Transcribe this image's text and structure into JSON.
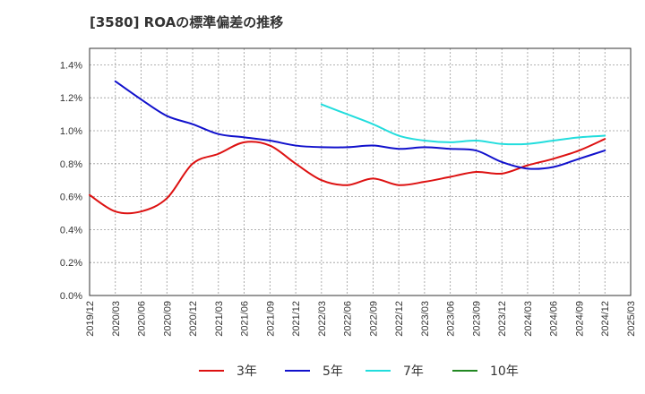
{
  "chart_data": {
    "type": "line",
    "title": "[3580]  ROAの標準偏差の推移",
    "xlabel": "",
    "ylabel": "",
    "x": [
      "2019/12",
      "2020/03",
      "2020/06",
      "2020/09",
      "2020/12",
      "2021/03",
      "2021/06",
      "2021/09",
      "2021/12",
      "2022/03",
      "2022/06",
      "2022/09",
      "2022/12",
      "2023/03",
      "2023/06",
      "2023/09",
      "2023/12",
      "2024/03",
      "2024/06",
      "2024/09",
      "2024/12",
      "2025/03"
    ],
    "y_ticks": [
      "0.0%",
      "0.2%",
      "0.4%",
      "0.6%",
      "0.8%",
      "1.0%",
      "1.2%",
      "1.4%"
    ],
    "ylim": [
      0,
      1.5
    ],
    "grid": true,
    "legend_position": "bottom",
    "series": [
      {
        "name": "3年",
        "color": "#dd1111",
        "values": [
          0.61,
          0.51,
          0.51,
          0.59,
          0.8,
          0.86,
          0.93,
          0.91,
          0.8,
          0.7,
          0.67,
          0.71,
          0.67,
          0.69,
          0.72,
          0.75,
          0.74,
          0.79,
          0.83,
          0.88,
          0.95,
          null
        ]
      },
      {
        "name": "5年",
        "color": "#1111cc",
        "values": [
          null,
          1.3,
          1.19,
          1.09,
          1.04,
          0.98,
          0.96,
          0.94,
          0.91,
          0.9,
          0.9,
          0.91,
          0.89,
          0.9,
          0.89,
          0.88,
          0.81,
          0.77,
          0.78,
          0.83,
          0.88,
          null
        ]
      },
      {
        "name": "7年",
        "color": "#22dddd",
        "values": [
          null,
          null,
          null,
          null,
          null,
          null,
          null,
          null,
          null,
          1.16,
          1.1,
          1.04,
          0.97,
          0.94,
          0.93,
          0.94,
          0.92,
          0.92,
          0.94,
          0.96,
          0.97,
          null
        ]
      },
      {
        "name": "10年",
        "color": "#228822",
        "values": [
          null,
          null,
          null,
          null,
          null,
          null,
          null,
          null,
          null,
          null,
          null,
          null,
          null,
          null,
          null,
          null,
          null,
          null,
          null,
          null,
          null,
          null
        ]
      }
    ]
  }
}
